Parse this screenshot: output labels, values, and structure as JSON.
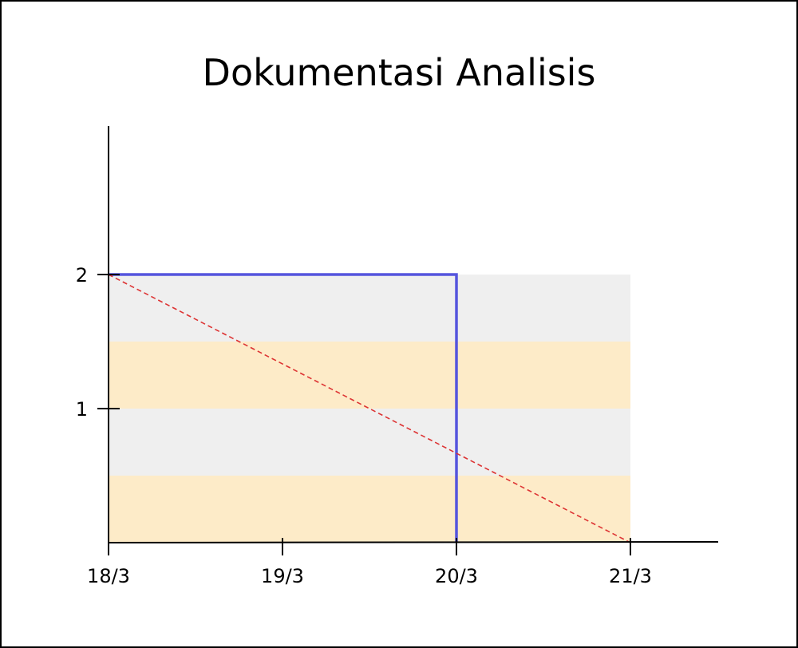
{
  "chart_data": {
    "type": "line",
    "title": "Dokumentasi Analisis",
    "xlabel": "",
    "ylabel": "",
    "x_ticks": [
      "18/3",
      "19/3",
      "20/3",
      "21/3"
    ],
    "y_ticks": [
      "1",
      "2"
    ],
    "xlim": [
      "18/3",
      "21/3"
    ],
    "ylim": [
      0,
      2
    ],
    "grid": false,
    "legend": "none",
    "bands": [
      {
        "y_from": 0.0,
        "y_to": 0.5,
        "color": "#fdebc8"
      },
      {
        "y_from": 0.5,
        "y_to": 1.0,
        "color": "#efefef"
      },
      {
        "y_from": 1.0,
        "y_to": 1.5,
        "color": "#fdebc8"
      },
      {
        "y_from": 1.5,
        "y_to": 2.0,
        "color": "#efefef"
      }
    ],
    "series": [
      {
        "style": "solid",
        "color": "#5555dd",
        "step": true,
        "x": [
          "18/3",
          "20/3",
          "20/3"
        ],
        "values": [
          2,
          2,
          0
        ]
      },
      {
        "style": "dashed",
        "color": "#dd3333",
        "x": [
          "18/3",
          "21/3"
        ],
        "values": [
          2,
          0
        ]
      }
    ]
  }
}
